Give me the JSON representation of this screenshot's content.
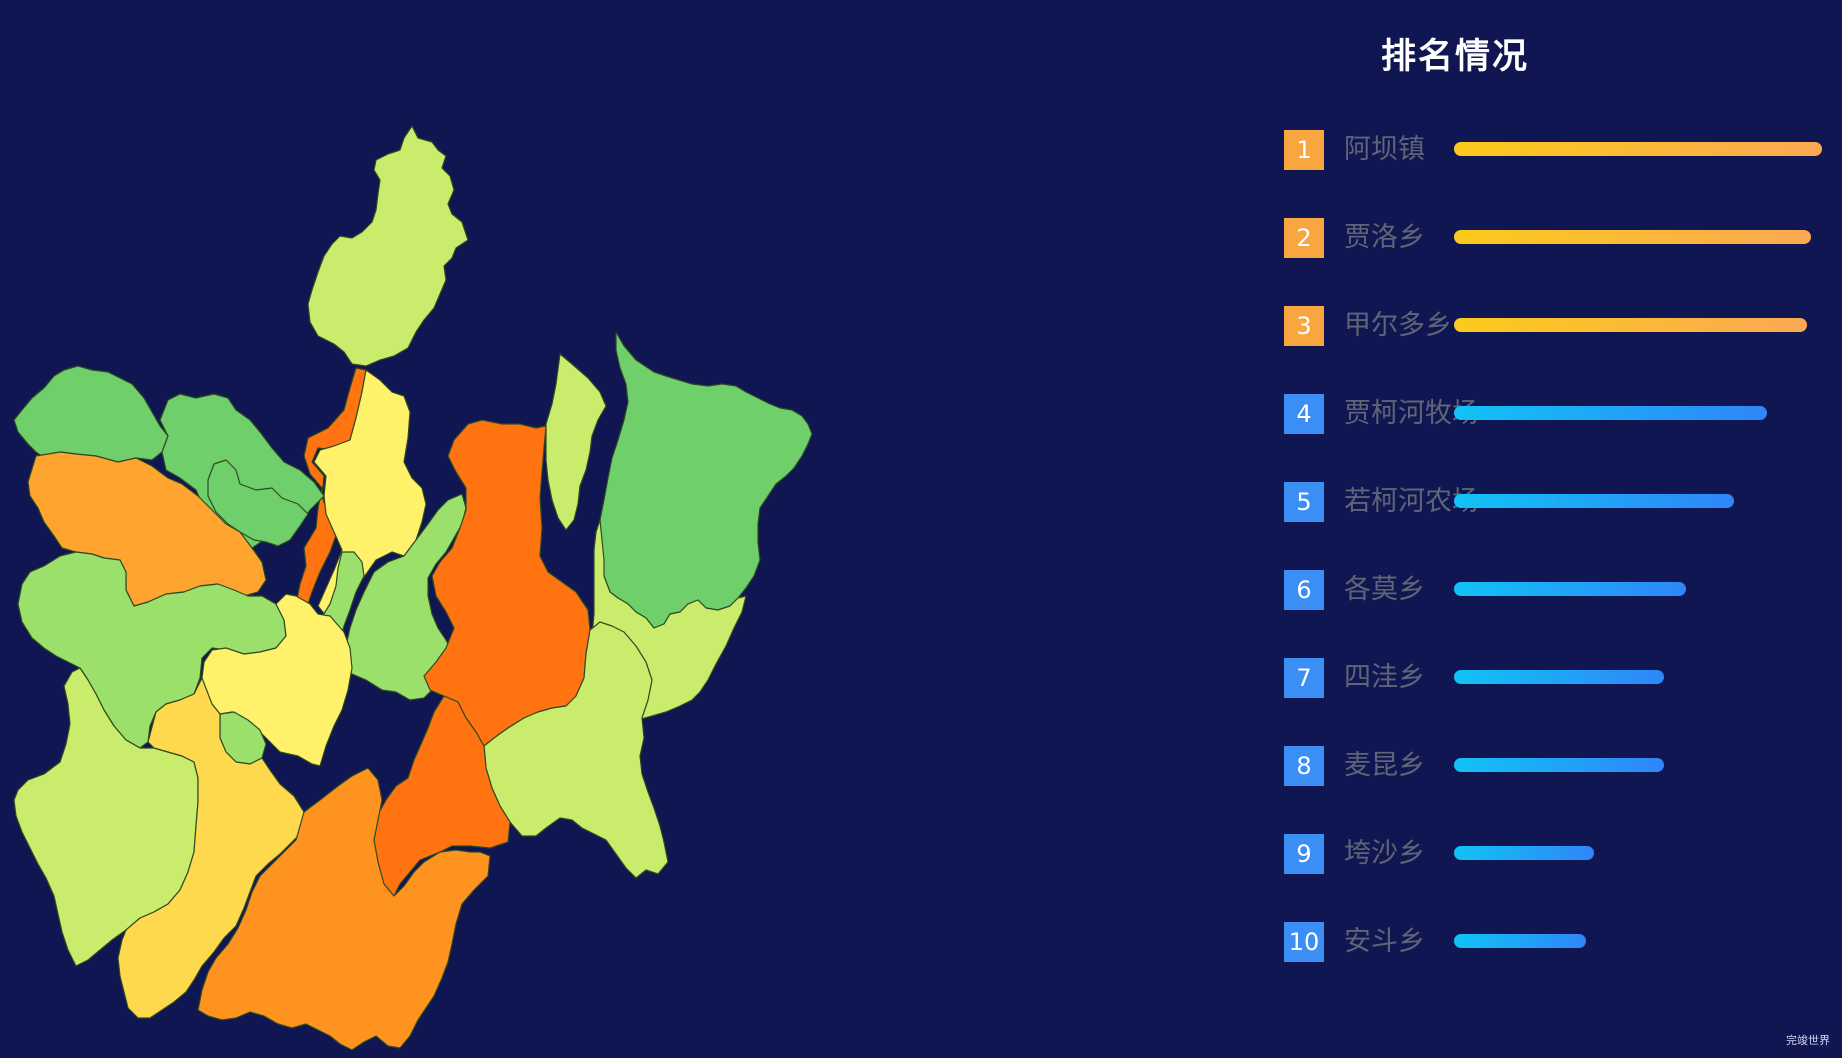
{
  "ranking": {
    "title": "排名情况",
    "max_value": 100,
    "top_colors": {
      "start": "#fbcb1b",
      "end": "#fba853"
    },
    "rest_colors": {
      "start": "#11c3f5",
      "end": "#2f86f8"
    },
    "badge_top_color": "#f9a640",
    "badge_rest_color": "#3b8ff4",
    "items": [
      {
        "rank": "1",
        "name": "阿坝镇",
        "value": 100
      },
      {
        "rank": "2",
        "name": "贾洛乡",
        "value": 97
      },
      {
        "rank": "3",
        "name": "甲尔多乡",
        "value": 96
      },
      {
        "rank": "4",
        "name": "贾柯河牧场",
        "value": 85
      },
      {
        "rank": "5",
        "name": "若柯河农场",
        "value": 76
      },
      {
        "rank": "6",
        "name": "各莫乡",
        "value": 63
      },
      {
        "rank": "7",
        "name": "四洼乡",
        "value": 57
      },
      {
        "rank": "8",
        "name": "麦昆乡",
        "value": 57
      },
      {
        "rank": "9",
        "name": "垮沙乡",
        "value": 38
      },
      {
        "rank": "10",
        "name": "安斗乡",
        "value": 36
      }
    ]
  },
  "map": {
    "palette": [
      "#6fcf6a",
      "#9be06b",
      "#c9ec6c",
      "#fff26a",
      "#ffd94d",
      "#ffa52f",
      "#ff931f",
      "#ff7410"
    ]
  },
  "credit": "完竣世界"
}
